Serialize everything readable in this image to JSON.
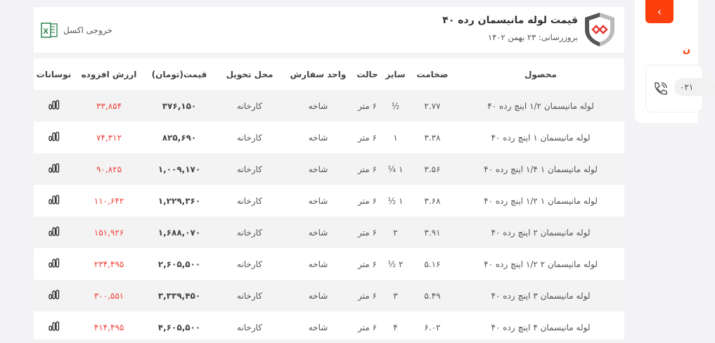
{
  "header": {
    "title": "قیمت لوله مانیسمان رده ۴۰",
    "updated": "بروزرسانی: ۲۳ بهمن ۱۴۰۲",
    "excel_label": "خروجی اکسل"
  },
  "side": {
    "back_icon": "chevron-left-icon",
    "phone_partial": "۰۲۱",
    "accent": "#fc3f0c"
  },
  "table": {
    "columns": [
      "محصول",
      "ضخامت",
      "سایز",
      "حالت",
      "واحد سفارش",
      "محل تحویل",
      "قیمت(تومان)",
      "ارزش افزوده",
      "نوسانات"
    ],
    "rows": [
      {
        "product": "لوله مانیسمان ۱/۲ اینچ رده ۴۰",
        "thickness": "۲.۷۷",
        "size": "½",
        "state": "۶ متر",
        "unit": "شاخه",
        "delivery": "کارخانه",
        "price": "۳۷۶,۱۵۰",
        "vat": "۳۳,۸۵۴"
      },
      {
        "product": "لوله مانیسمان ۱ اینچ رده ۴۰",
        "thickness": "۳.۳۸",
        "size": "۱",
        "state": "۶ متر",
        "unit": "شاخه",
        "delivery": "کارخانه",
        "price": "۸۲۵,۶۹۰",
        "vat": "۷۴,۳۱۲"
      },
      {
        "product": "لوله مانیسمان ۱ ۱/۴ اینچ رده ۴۰",
        "thickness": "۳.۵۶",
        "size": "۱ ¼",
        "state": "۶ متر",
        "unit": "شاخه",
        "delivery": "کارخانه",
        "price": "۱,۰۰۹,۱۷۰",
        "vat": "۹۰,۸۲۵"
      },
      {
        "product": "لوله مانیسمان ۱ ۱/۲ اینچ رده ۴۰",
        "thickness": "۳.۶۸",
        "size": "۱ ½",
        "state": "۶ متر",
        "unit": "شاخه",
        "delivery": "کارخانه",
        "price": "۱,۲۲۹,۳۶۰",
        "vat": "۱۱۰,۶۴۲"
      },
      {
        "product": "لوله مانیسمان ۲ اینچ رده ۴۰",
        "thickness": "۳.۹۱",
        "size": "۲",
        "state": "۶ متر",
        "unit": "شاخه",
        "delivery": "کارخانه",
        "price": "۱,۶۸۸,۰۷۰",
        "vat": "۱۵۱,۹۲۶"
      },
      {
        "product": "لوله مانیسمان ۲ ۱/۲ اینچ رده ۴۰",
        "thickness": "۵.۱۶",
        "size": "۲ ½",
        "state": "۶ متر",
        "unit": "شاخه",
        "delivery": "کارخانه",
        "price": "۲,۶۰۵,۵۰۰",
        "vat": "۲۳۴,۴۹۵"
      },
      {
        "product": "لوله مانیسمان ۳ اینچ رده ۴۰",
        "thickness": "۵.۴۹",
        "size": "۳",
        "state": "۶ متر",
        "unit": "شاخه",
        "delivery": "کارخانه",
        "price": "۳,۳۳۹,۴۵۰",
        "vat": "۳۰۰,۵۵۱"
      },
      {
        "product": "لوله مانیسمان ۴ اینچ رده ۴۰",
        "thickness": "۶.۰۲",
        "size": "۴",
        "state": "۶ متر",
        "unit": "شاخه",
        "delivery": "کارخانه",
        "price": "۴,۶۰۵,۵۰۰",
        "vat": "۴۱۴,۴۹۵"
      }
    ]
  }
}
